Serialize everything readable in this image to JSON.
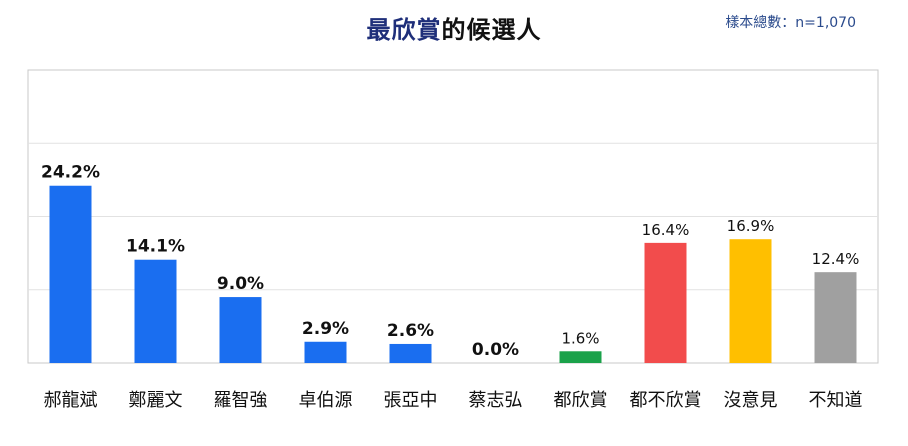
{
  "header": {
    "title_highlight": "最欣賞",
    "title_rest": "的候選人",
    "sample_size": "樣本總數：n=1,070"
  },
  "chart_data": {
    "type": "bar",
    "title": "最欣賞的候選人",
    "categories": [
      "郝龍斌",
      "鄭麗文",
      "羅智強",
      "卓伯源",
      "張亞中",
      "蔡志弘",
      "都欣賞",
      "都不欣賞",
      "沒意見",
      "不知道"
    ],
    "values": [
      24.2,
      14.1,
      9.0,
      2.9,
      2.6,
      0.0,
      1.6,
      16.4,
      16.9,
      12.4
    ],
    "value_labels": [
      "24.2%",
      "14.1%",
      "9.0%",
      "2.9%",
      "2.6%",
      "0.0%",
      "1.6%",
      "16.4%",
      "16.9%",
      "12.4%"
    ],
    "colors": [
      "#1a6ef0",
      "#1a6ef0",
      "#1a6ef0",
      "#1a6ef0",
      "#1a6ef0",
      "#1a6ef0",
      "#1aa24a",
      "#f24c4c",
      "#ffbf00",
      "#a0a0a0"
    ],
    "bold_labels": [
      true,
      true,
      true,
      true,
      true,
      true,
      false,
      false,
      false,
      false
    ],
    "ylim": [
      0,
      40
    ],
    "grid": true,
    "xlabel": "",
    "ylabel": ""
  }
}
